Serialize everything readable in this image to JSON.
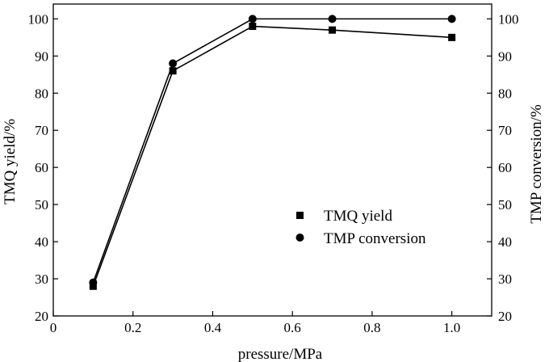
{
  "chart_data": {
    "type": "line",
    "xlabel": "pressure/MPa",
    "ylabel_left": "TMQ yield/%",
    "ylabel_right": "TMP conversion/%",
    "xlim": [
      0,
      1.1
    ],
    "ylim": [
      20,
      104
    ],
    "x_ticks": [
      "0",
      "0.2",
      "0.4",
      "0.6",
      "0.8",
      "1.0"
    ],
    "x_tick_values": [
      0,
      0.2,
      0.4,
      0.6,
      0.8,
      1.0
    ],
    "y_ticks": [
      "20",
      "30",
      "40",
      "50",
      "60",
      "70",
      "80",
      "90",
      "100"
    ],
    "y_tick_values": [
      20,
      30,
      40,
      50,
      60,
      70,
      80,
      90,
      100
    ],
    "grid": false,
    "legend_position": "center-right",
    "series": [
      {
        "name": "TMQ yield",
        "marker": "square",
        "axis": "left",
        "x": [
          0.1,
          0.3,
          0.5,
          0.7,
          1.0
        ],
        "y": [
          28,
          86,
          98,
          97,
          95
        ]
      },
      {
        "name": "TMP conversion",
        "marker": "circle",
        "axis": "right",
        "x": [
          0.1,
          0.3,
          0.5,
          0.7,
          1.0
        ],
        "y": [
          29,
          88,
          100,
          100,
          100
        ]
      }
    ],
    "colors": {
      "line": "#000000",
      "background": "#ffffff"
    }
  }
}
